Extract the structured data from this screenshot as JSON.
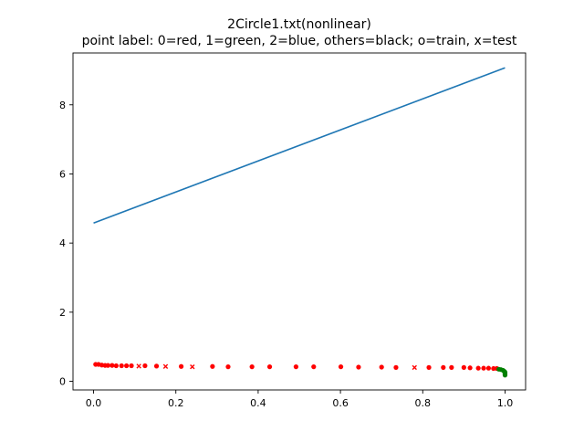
{
  "chart_data": {
    "type": "line+scatter",
    "title": "2Circle1.txt(nonlinear)",
    "subtitle": "point label: 0=red, 1=green, 2=blue, others=black; o=train, x=test",
    "xlim": [
      -0.05,
      1.05
    ],
    "ylim": [
      -0.25,
      9.5
    ],
    "xticks": [
      "0.0",
      "0.2",
      "0.4",
      "0.6",
      "0.8",
      "1.0"
    ],
    "xtick_values": [
      0,
      0.2,
      0.4,
      0.6,
      0.8,
      1.0
    ],
    "yticks": [
      "0",
      "2",
      "4",
      "6",
      "8"
    ],
    "ytick_values": [
      0,
      2,
      4,
      6,
      8
    ],
    "grid": false,
    "line": {
      "color": "#1f77b4",
      "x": [
        0.0,
        1.0
      ],
      "y": [
        4.58,
        9.07
      ]
    },
    "series": [
      {
        "label_class": 0,
        "color": "#ff0000",
        "marker": "o",
        "x": [
          0.005,
          0.012,
          0.02,
          0.028,
          0.035,
          0.045,
          0.055,
          0.068,
          0.08,
          0.092,
          0.125,
          0.153,
          0.213,
          0.289,
          0.327,
          0.385,
          0.428,
          0.492,
          0.535,
          0.601,
          0.644,
          0.7,
          0.735,
          0.815,
          0.85,
          0.87,
          0.9,
          0.915,
          0.935,
          0.948,
          0.96,
          0.972,
          0.98
        ],
        "y": [
          0.49,
          0.49,
          0.47,
          0.46,
          0.46,
          0.46,
          0.45,
          0.45,
          0.45,
          0.45,
          0.45,
          0.44,
          0.43,
          0.43,
          0.42,
          0.42,
          0.42,
          0.42,
          0.42,
          0.42,
          0.41,
          0.41,
          0.4,
          0.4,
          0.4,
          0.4,
          0.4,
          0.39,
          0.38,
          0.38,
          0.38,
          0.37,
          0.37
        ]
      },
      {
        "label_class": 0,
        "color": "#ff0000",
        "marker": "x",
        "x": [
          0.11,
          0.175,
          0.24,
          0.78
        ],
        "y": [
          0.44,
          0.43,
          0.42,
          0.4
        ]
      },
      {
        "label_class": 1,
        "color": "#008000",
        "marker": "o",
        "x": [
          0.985,
          0.99,
          0.995,
          0.997,
          0.999,
          1.0,
          1.0,
          1.0,
          1.0,
          1.0
        ],
        "y": [
          0.35,
          0.34,
          0.32,
          0.3,
          0.28,
          0.26,
          0.24,
          0.22,
          0.2,
          0.18
        ]
      }
    ]
  }
}
